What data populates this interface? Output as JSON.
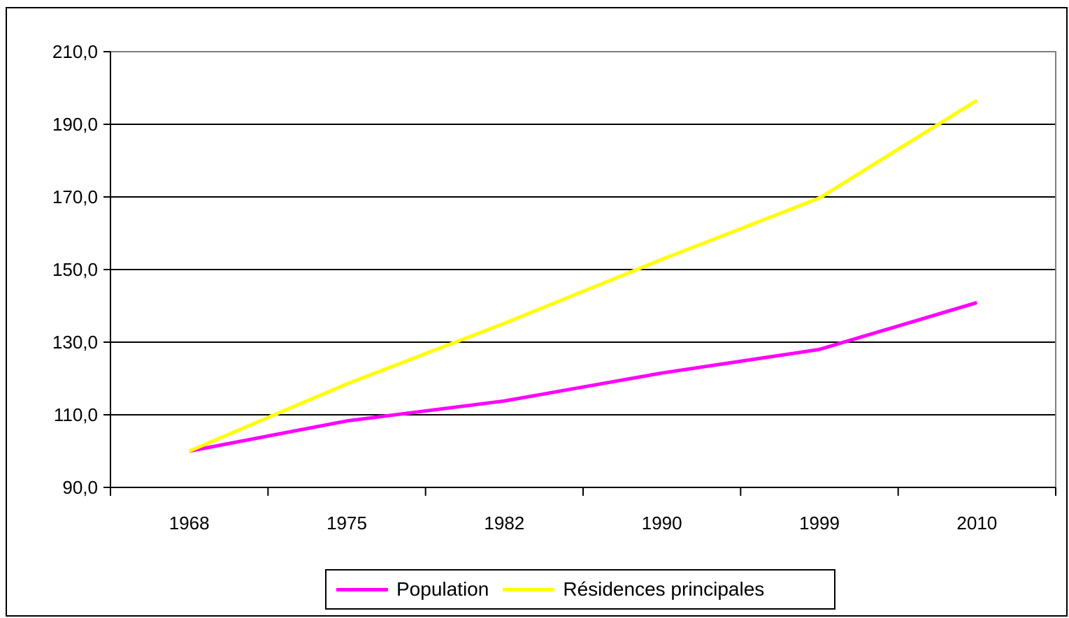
{
  "chart_data": {
    "type": "line",
    "categories": [
      "1968",
      "1975",
      "1982",
      "1990",
      "1999",
      "2010"
    ],
    "series": [
      {
        "name": "Population",
        "color": "#ff00ff",
        "values": [
          100.0,
          108.3,
          113.8,
          121.5,
          128.0,
          140.9
        ]
      },
      {
        "name": "Résidences principales",
        "color": "#ffff00",
        "values": [
          100.0,
          118.5,
          135.2,
          152.8,
          169.7,
          196.6
        ]
      }
    ],
    "y_ticks": [
      "90,0",
      "110,0",
      "130,0",
      "150,0",
      "170,0",
      "190,0",
      "210,0"
    ],
    "ylim": [
      90,
      210
    ],
    "grid": true,
    "legend_position": "bottom",
    "plot_border_color": "#808080"
  }
}
